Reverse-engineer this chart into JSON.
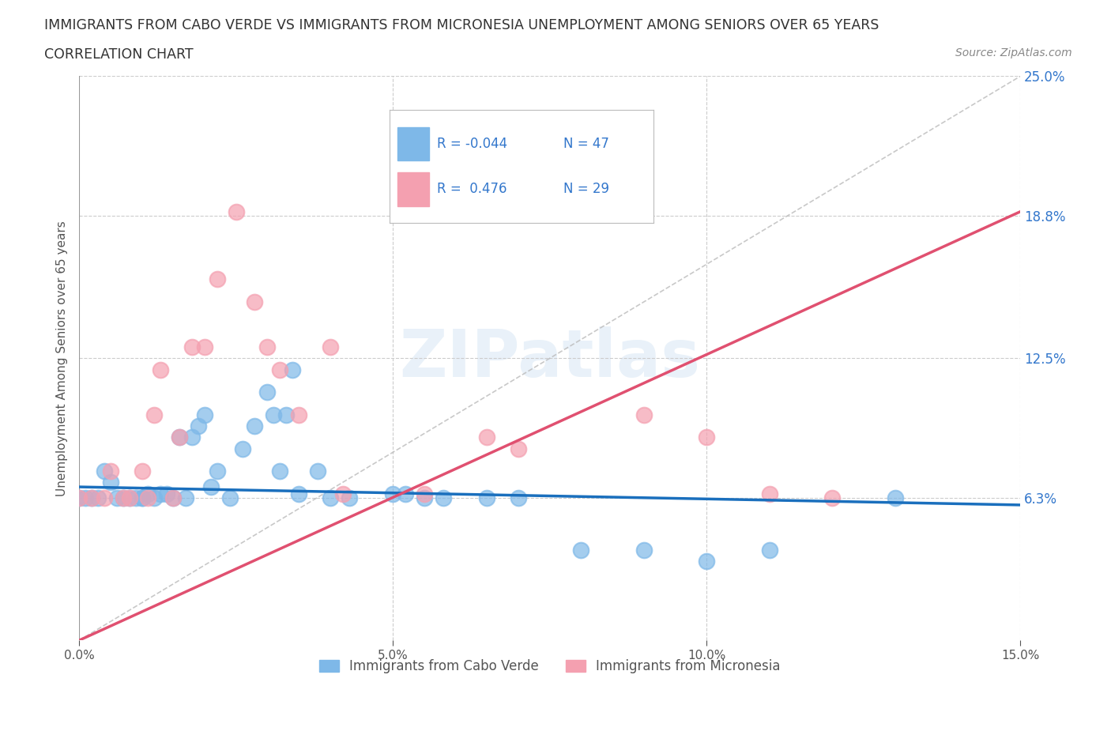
{
  "title_line1": "IMMIGRANTS FROM CABO VERDE VS IMMIGRANTS FROM MICRONESIA UNEMPLOYMENT AMONG SENIORS OVER 65 YEARS",
  "title_line2": "CORRELATION CHART",
  "source_text": "Source: ZipAtlas.com",
  "ylabel": "Unemployment Among Seniors over 65 years",
  "xlim": [
    0.0,
    0.15
  ],
  "ylim": [
    0.0,
    0.25
  ],
  "x_ticks": [
    0.0,
    0.05,
    0.1,
    0.15
  ],
  "x_tick_labels": [
    "0.0%",
    "5.0%",
    "10.0%",
    "15.0%"
  ],
  "y_ticks_right": [
    0.063,
    0.125,
    0.188,
    0.25
  ],
  "y_tick_labels_right": [
    "6.3%",
    "12.5%",
    "18.8%",
    "25.0%"
  ],
  "cabo_verde_R": -0.044,
  "cabo_verde_N": 47,
  "micronesia_R": 0.476,
  "micronesia_N": 29,
  "cabo_verde_color": "#7eb8e8",
  "micronesia_color": "#f4a0b0",
  "cabo_verde_line_color": "#1a6fbd",
  "micronesia_line_color": "#e05070",
  "watermark": "ZIPatlas",
  "cabo_verde_x": [
    0.0,
    0.001,
    0.002,
    0.003,
    0.004,
    0.005,
    0.006,
    0.007,
    0.008,
    0.009,
    0.01,
    0.01,
    0.011,
    0.012,
    0.013,
    0.014,
    0.015,
    0.016,
    0.017,
    0.018,
    0.019,
    0.02,
    0.021,
    0.022,
    0.024,
    0.026,
    0.028,
    0.03,
    0.031,
    0.032,
    0.033,
    0.034,
    0.035,
    0.038,
    0.04,
    0.043,
    0.05,
    0.052,
    0.055,
    0.058,
    0.065,
    0.07,
    0.08,
    0.09,
    0.1,
    0.11,
    0.13
  ],
  "cabo_verde_y": [
    0.063,
    0.063,
    0.063,
    0.063,
    0.075,
    0.07,
    0.063,
    0.063,
    0.063,
    0.063,
    0.063,
    0.063,
    0.065,
    0.063,
    0.065,
    0.065,
    0.063,
    0.09,
    0.063,
    0.09,
    0.095,
    0.1,
    0.068,
    0.075,
    0.063,
    0.085,
    0.095,
    0.11,
    0.1,
    0.075,
    0.1,
    0.12,
    0.065,
    0.075,
    0.063,
    0.063,
    0.065,
    0.065,
    0.063,
    0.063,
    0.063,
    0.063,
    0.04,
    0.04,
    0.035,
    0.04,
    0.063
  ],
  "micronesia_x": [
    0.0,
    0.002,
    0.004,
    0.005,
    0.007,
    0.008,
    0.01,
    0.011,
    0.012,
    0.013,
    0.015,
    0.016,
    0.018,
    0.02,
    0.022,
    0.025,
    0.028,
    0.03,
    0.032,
    0.035,
    0.04,
    0.042,
    0.055,
    0.065,
    0.07,
    0.09,
    0.1,
    0.11,
    0.12
  ],
  "micronesia_y": [
    0.063,
    0.063,
    0.063,
    0.075,
    0.063,
    0.063,
    0.075,
    0.063,
    0.1,
    0.12,
    0.063,
    0.09,
    0.13,
    0.13,
    0.16,
    0.19,
    0.15,
    0.13,
    0.12,
    0.1,
    0.13,
    0.065,
    0.065,
    0.09,
    0.085,
    0.1,
    0.09,
    0.065,
    0.063
  ],
  "grid_color": "#cccccc",
  "background_color": "#ffffff",
  "title_color": "#333333",
  "label_color": "#555555",
  "tick_color_right": "#3377cc",
  "legend_cabo_r_text": "R = -0.044",
  "legend_cabo_n_text": "N = 47",
  "legend_micro_r_text": "R =  0.476",
  "legend_micro_n_text": "N = 29"
}
